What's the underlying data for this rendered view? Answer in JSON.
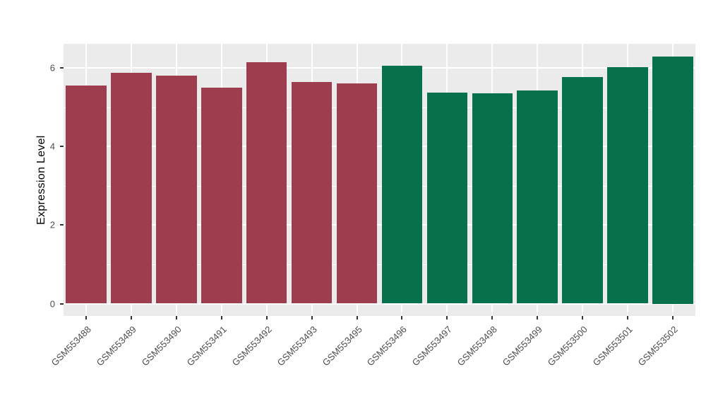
{
  "figure": {
    "background": "#FFFFFF",
    "panel_background": "#EBEBEB",
    "grid_color": "#FFFFFF",
    "axis_text_color": "#4D4D4D",
    "tick_color": "#333333"
  },
  "chart_data": {
    "type": "bar",
    "title": "",
    "xlabel": "",
    "ylabel": "Expression Level",
    "ylim": [
      0,
      6.3
    ],
    "yticks": [
      0,
      2,
      4,
      6
    ],
    "minor_ticks": [
      1,
      3,
      5
    ],
    "grid": true,
    "legend": "none",
    "bar_width_fraction": 0.9,
    "categories": [
      "GSM553488",
      "GSM553489",
      "GSM553490",
      "GSM553491",
      "GSM553492",
      "GSM553493",
      "GSM553495",
      "GSM553496",
      "GSM553497",
      "GSM553498",
      "GSM553499",
      "GSM553500",
      "GSM553501",
      "GSM553502"
    ],
    "series": [
      {
        "name": "Expression Level",
        "values": [
          5.55,
          5.88,
          5.8,
          5.5,
          6.15,
          5.65,
          5.6,
          6.05,
          5.38,
          5.35,
          5.43,
          5.77,
          6.02,
          6.3
        ]
      }
    ],
    "bar_colors": [
      "#9E3D4D",
      "#9E3D4D",
      "#9E3D4D",
      "#9E3D4D",
      "#9E3D4D",
      "#9E3D4D",
      "#9E3D4D",
      "#06714A",
      "#06714A",
      "#06714A",
      "#06714A",
      "#06714A",
      "#06714A",
      "#06714A"
    ],
    "group_colors": {
      "red_group": "#9E3D4D",
      "green_group": "#06714A"
    }
  }
}
